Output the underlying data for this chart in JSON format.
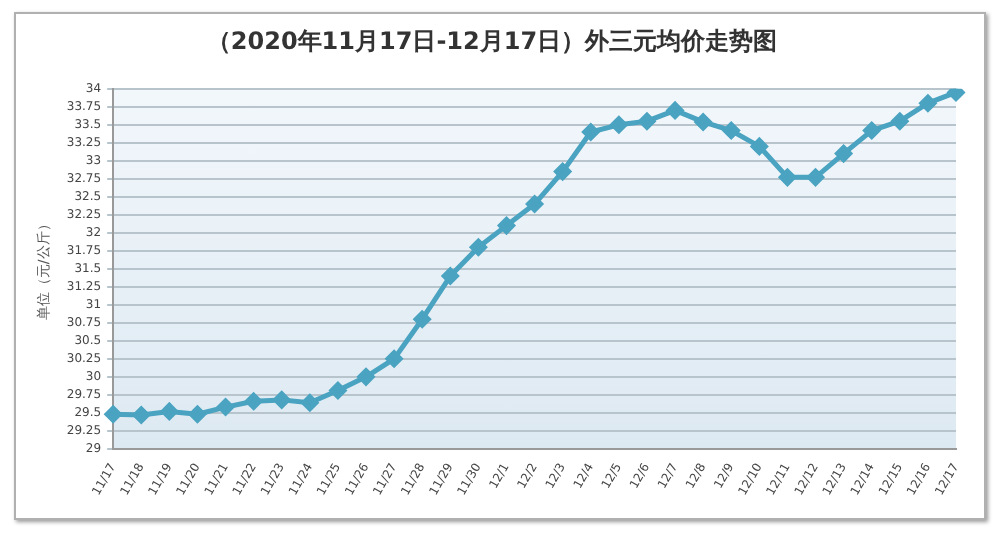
{
  "chart_data": {
    "type": "line",
    "title": "（2020年11月17日-12月17日）外三元均价走势图",
    "ylabel": "单位（元/公斤）",
    "categories": [
      "11/17",
      "11/18",
      "11/19",
      "11/20",
      "11/21",
      "11/22",
      "11/23",
      "11/24",
      "11/25",
      "11/26",
      "11/27",
      "11/28",
      "11/29",
      "11/30",
      "12/1",
      "12/2",
      "12/3",
      "12/4",
      "12/5",
      "12/6",
      "12/7",
      "12/8",
      "12/9",
      "12/10",
      "12/11",
      "12/12",
      "12/13",
      "12/14",
      "12/15",
      "12/16",
      "12/17"
    ],
    "series": [
      {
        "color": "#4aa3c0",
        "values": [
          29.48,
          29.47,
          29.52,
          29.48,
          29.58,
          29.66,
          29.68,
          29.64,
          29.81,
          30.0,
          30.25,
          30.8,
          31.4,
          31.8,
          32.1,
          32.4,
          32.85,
          33.4,
          33.5,
          33.55,
          33.7,
          33.54,
          33.42,
          33.2,
          32.77,
          32.77,
          33.1,
          33.42,
          33.55,
          33.8,
          33.95
        ]
      }
    ],
    "ylim": [
      29,
      34
    ],
    "yticks": [
      29,
      29.25,
      29.5,
      29.75,
      30,
      30.25,
      30.5,
      30.75,
      31,
      31.25,
      31.5,
      31.75,
      32,
      32.25,
      32.5,
      32.75,
      33,
      33.25,
      33.5,
      33.75,
      34
    ],
    "grid": "y",
    "legend": false,
    "marker": "diamond",
    "line_style": "solid"
  }
}
